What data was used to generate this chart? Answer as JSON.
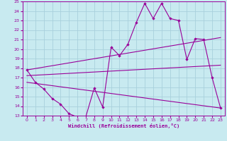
{
  "background_color": "#c8eaf0",
  "grid_color": "#a8d0dc",
  "line_color": "#990099",
  "xlabel": "Windchill (Refroidissement éolien,°C)",
  "xlim": [
    -0.5,
    23.5
  ],
  "ylim": [
    13,
    25
  ],
  "yticks": [
    13,
    14,
    15,
    16,
    17,
    18,
    19,
    20,
    21,
    22,
    23,
    24,
    25
  ],
  "xticks": [
    0,
    1,
    2,
    3,
    4,
    5,
    6,
    7,
    8,
    9,
    10,
    11,
    12,
    13,
    14,
    15,
    16,
    17,
    18,
    19,
    20,
    21,
    22,
    23
  ],
  "line1_x": [
    0,
    1,
    2,
    3,
    4,
    5,
    6,
    7,
    8,
    9,
    10,
    11,
    12,
    13,
    14,
    15,
    16,
    17,
    18,
    19,
    20,
    21,
    22,
    23
  ],
  "line1_y": [
    17.8,
    16.5,
    15.8,
    14.8,
    14.2,
    13.2,
    12.85,
    12.9,
    15.9,
    13.9,
    20.2,
    19.3,
    20.5,
    22.8,
    24.8,
    23.2,
    24.8,
    23.2,
    23.0,
    18.9,
    21.1,
    21.0,
    17.0,
    13.8
  ],
  "line2_x": [
    0,
    23
  ],
  "line2_y": [
    17.8,
    21.2
  ],
  "line3_x": [
    0,
    23
  ],
  "line3_y": [
    17.2,
    18.3
  ],
  "line4_x": [
    0,
    23
  ],
  "line4_y": [
    16.5,
    13.8
  ]
}
